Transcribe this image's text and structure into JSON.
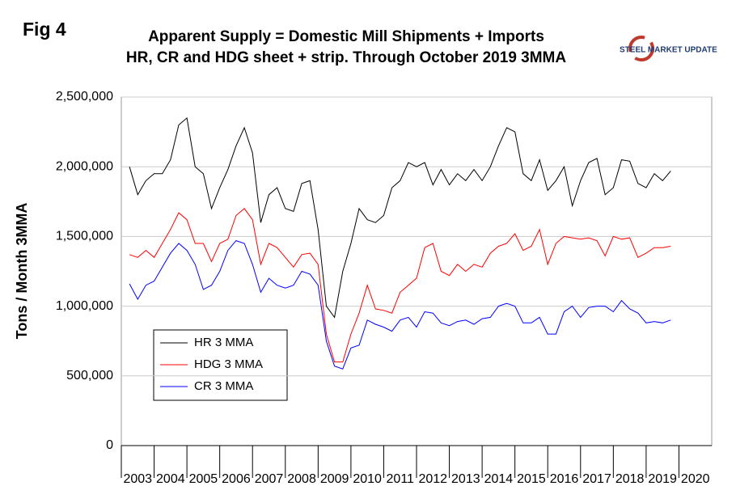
{
  "figure_label": "Fig 4",
  "logo": "STEEL MARKET UPDATE",
  "chart_data": {
    "type": "line",
    "title": "Apparent Supply = Domestic Mill Shipments + Imports",
    "subtitle": "HR, CR and HDG sheet + strip. Through October 2019 3MMA",
    "y_label": "Tons / Month 3MMA",
    "grid": true,
    "legend": "lower-left",
    "xlim": [
      2003,
      2021
    ],
    "xticks": [
      2003,
      2004,
      2005,
      2006,
      2007,
      2008,
      2009,
      2010,
      2011,
      2012,
      2013,
      2014,
      2015,
      2016,
      2017,
      2018,
      2019,
      2020
    ],
    "ylim": [
      0,
      2500000
    ],
    "yticks": [
      0,
      {
        "value": 500000,
        "label": "500,000"
      },
      {
        "value": 1000000,
        "label": "1,000,000"
      },
      {
        "value": 1500000,
        "label": "1,500,000"
      },
      {
        "value": 2000000,
        "label": "2,000,000"
      },
      {
        "value": 2500000,
        "label": "2,500,000"
      }
    ],
    "x": [
      2003.25,
      2003.5,
      2003.75,
      2004,
      2004.25,
      2004.5,
      2004.75,
      2005,
      2005.25,
      2005.5,
      2005.75,
      2006,
      2006.25,
      2006.5,
      2006.75,
      2007,
      2007.25,
      2007.5,
      2007.75,
      2008,
      2008.25,
      2008.5,
      2008.75,
      2009,
      2009.25,
      2009.5,
      2009.75,
      2010,
      2010.25,
      2010.5,
      2010.75,
      2011,
      2011.25,
      2011.5,
      2011.75,
      2012,
      2012.25,
      2012.5,
      2012.75,
      2013,
      2013.25,
      2013.5,
      2013.75,
      2014,
      2014.25,
      2014.5,
      2014.75,
      2015,
      2015.25,
      2015.5,
      2015.75,
      2016,
      2016.25,
      2016.5,
      2016.75,
      2017,
      2017.25,
      2017.5,
      2017.75,
      2018,
      2018.25,
      2018.5,
      2018.75,
      2019,
      2019.25,
      2019.5,
      2019.75
    ],
    "series": [
      {
        "name": "HR 3 MMA",
        "color": "#000000",
        "values": [
          2000000,
          1800000,
          1900000,
          1950000,
          1950000,
          2050000,
          2300000,
          2350000,
          2000000,
          1950000,
          1700000,
          1850000,
          1980000,
          2150000,
          2280000,
          2100000,
          1600000,
          1800000,
          1850000,
          1700000,
          1680000,
          1880000,
          1900000,
          1550000,
          1000000,
          920000,
          1250000,
          1450000,
          1700000,
          1620000,
          1600000,
          1650000,
          1850000,
          1900000,
          2030000,
          2000000,
          2030000,
          1870000,
          1980000,
          1870000,
          1950000,
          1900000,
          1980000,
          1900000,
          2000000,
          2150000,
          2280000,
          2250000,
          1950000,
          1900000,
          2050000,
          1830000,
          1900000,
          2000000,
          1720000,
          1900000,
          2030000,
          2060000,
          1800000,
          1850000,
          2050000,
          2040000,
          1880000,
          1850000,
          1950000,
          1900000,
          1970000
        ]
      },
      {
        "name": "HDG 3 MMA",
        "color": "#ff0000",
        "values": [
          1370000,
          1350000,
          1400000,
          1350000,
          1450000,
          1550000,
          1670000,
          1620000,
          1450000,
          1450000,
          1320000,
          1450000,
          1480000,
          1650000,
          1700000,
          1620000,
          1300000,
          1450000,
          1420000,
          1350000,
          1280000,
          1370000,
          1380000,
          1300000,
          800000,
          600000,
          600000,
          800000,
          950000,
          1150000,
          980000,
          970000,
          950000,
          1100000,
          1150000,
          1200000,
          1420000,
          1450000,
          1250000,
          1220000,
          1300000,
          1250000,
          1300000,
          1280000,
          1380000,
          1430000,
          1450000,
          1520000,
          1400000,
          1430000,
          1550000,
          1300000,
          1450000,
          1500000,
          1490000,
          1480000,
          1490000,
          1470000,
          1360000,
          1500000,
          1480000,
          1490000,
          1350000,
          1380000,
          1420000,
          1420000,
          1430000
        ]
      },
      {
        "name": "CR 3 MMA",
        "color": "#0000ff",
        "values": [
          1160000,
          1050000,
          1150000,
          1180000,
          1280000,
          1380000,
          1450000,
          1400000,
          1300000,
          1120000,
          1150000,
          1250000,
          1400000,
          1470000,
          1450000,
          1300000,
          1100000,
          1200000,
          1150000,
          1130000,
          1150000,
          1250000,
          1230000,
          1150000,
          750000,
          570000,
          550000,
          700000,
          720000,
          900000,
          870000,
          850000,
          820000,
          900000,
          920000,
          850000,
          960000,
          950000,
          880000,
          860000,
          890000,
          900000,
          870000,
          910000,
          920000,
          1000000,
          1020000,
          1000000,
          880000,
          880000,
          920000,
          800000,
          800000,
          960000,
          1000000,
          920000,
          990000,
          1000000,
          1000000,
          960000,
          1040000,
          980000,
          950000,
          880000,
          890000,
          880000,
          900000
        ]
      }
    ]
  }
}
